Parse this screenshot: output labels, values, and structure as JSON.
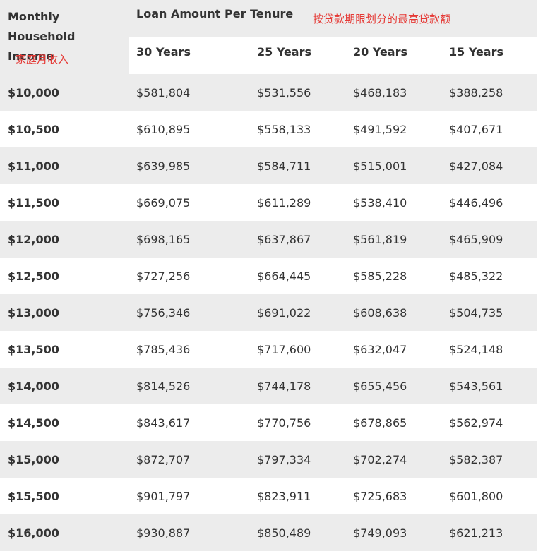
{
  "header": {
    "income_label": "Monthly Household Income",
    "income_note": "家庭月收入",
    "loan_label": "Loan Amount Per Tenure",
    "loan_note": "按贷款期限划分的最高贷款额",
    "tenures": [
      "30 Years",
      "25 Years",
      "20 Years",
      "15 Years"
    ]
  },
  "table": {
    "rows": [
      [
        "$10,000",
        "$581,804",
        "$531,556",
        "$468,183",
        "$388,258"
      ],
      [
        "$10,500",
        "$610,895",
        "$558,133",
        "$491,592",
        "$407,671"
      ],
      [
        "$11,000",
        "$639,985",
        "$584,711",
        "$515,001",
        "$427,084"
      ],
      [
        "$11,500",
        "$669,075",
        "$611,289",
        "$538,410",
        "$446,496"
      ],
      [
        "$12,000",
        "$698,165",
        "$637,867",
        "$561,819",
        "$465,909"
      ],
      [
        "$12,500",
        "$727,256",
        "$664,445",
        "$585,228",
        "$485,322"
      ],
      [
        "$13,000",
        "$756,346",
        "$691,022",
        "$608,638",
        "$504,735"
      ],
      [
        "$13,500",
        "$785,436",
        "$717,600",
        "$632,047",
        "$524,148"
      ],
      [
        "$14,000",
        "$814,526",
        "$744,178",
        "$655,456",
        "$543,561"
      ],
      [
        "$14,500",
        "$843,617",
        "$770,756",
        "$678,865",
        "$562,974"
      ],
      [
        "$15,000",
        "$872,707",
        "$797,334",
        "$702,274",
        "$582,387"
      ],
      [
        "$15,500",
        "$901,797",
        "$823,911",
        "$725,683",
        "$601,800"
      ],
      [
        "$16,000",
        "$930,887",
        "$850,489",
        "$749,093",
        "$621,213"
      ]
    ]
  }
}
